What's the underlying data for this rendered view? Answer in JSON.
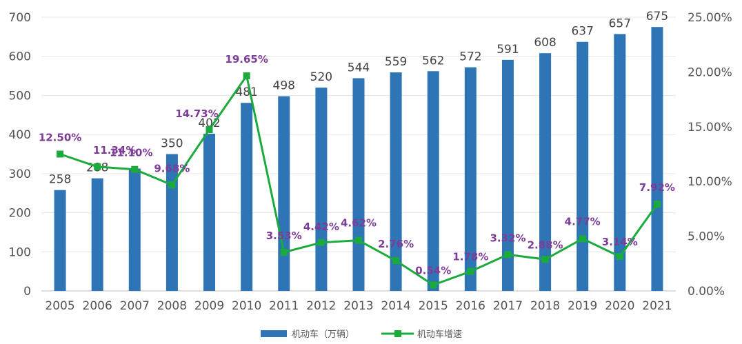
{
  "chart_data": {
    "type": "bar",
    "categories": [
      "2005",
      "2006",
      "2007",
      "2008",
      "2009",
      "2010",
      "2011",
      "2012",
      "2013",
      "2014",
      "2015",
      "2016",
      "2017",
      "2018",
      "2019",
      "2020",
      "2021"
    ],
    "series": [
      {
        "name": "机动车（万辆）",
        "type": "bar",
        "axis": "left",
        "values": [
          258,
          288,
          313,
          350,
          402,
          481,
          498,
          520,
          544,
          559,
          562,
          572,
          591,
          608,
          637,
          657,
          675
        ],
        "labels": [
          "258",
          "288",
          "",
          "350",
          "402",
          "481",
          "498",
          "520",
          "544",
          "559",
          "562",
          "572",
          "591",
          "608",
          "637",
          "657",
          "675"
        ],
        "color": "#2e75b6"
      },
      {
        "name": "机动车增速",
        "type": "line",
        "axis": "right",
        "values": [
          12.5,
          11.34,
          11.1,
          9.68,
          14.73,
          19.65,
          3.53,
          4.42,
          4.62,
          2.76,
          0.54,
          1.78,
          3.32,
          2.88,
          4.77,
          3.14,
          7.92
        ],
        "labels": [
          "12.50%",
          "11.34%",
          "11.10%",
          "9.68%",
          "14.73%",
          "19.65%",
          "3.53%",
          "4.42%",
          "4.62%",
          "2.76%",
          "0.54%",
          "1.78%",
          "3.32%",
          "2.88%",
          "4.77%",
          "3.14%",
          "7.92%"
        ],
        "color": "#1aab3c",
        "label_color": "#7d3c98"
      }
    ],
    "y_left": {
      "min": 0,
      "max": 700,
      "ticks": [
        "0",
        "100",
        "200",
        "300",
        "400",
        "500",
        "600",
        "700"
      ]
    },
    "y_right": {
      "min": 0,
      "max": 25,
      "ticks": [
        "0.00%",
        "5.00%",
        "10.00%",
        "15.00%",
        "20.00%",
        "25.00%"
      ]
    },
    "grid": true,
    "legend_position": "bottom",
    "title": "",
    "xlabel": "",
    "ylabel": ""
  }
}
